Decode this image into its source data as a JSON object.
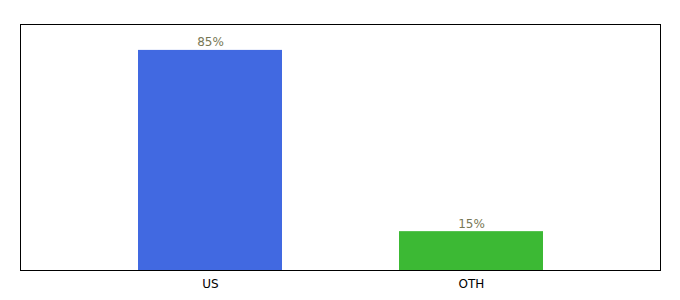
{
  "chart_data": {
    "type": "bar",
    "categories": [
      "US",
      "OTH"
    ],
    "values": [
      85,
      15
    ],
    "value_labels": [
      "85%",
      "15%"
    ],
    "colors": [
      "#4169e1",
      "#3cb934"
    ],
    "ylim": [
      0,
      95
    ],
    "yticks": [],
    "data_labels": true,
    "tick_labels": "x"
  }
}
